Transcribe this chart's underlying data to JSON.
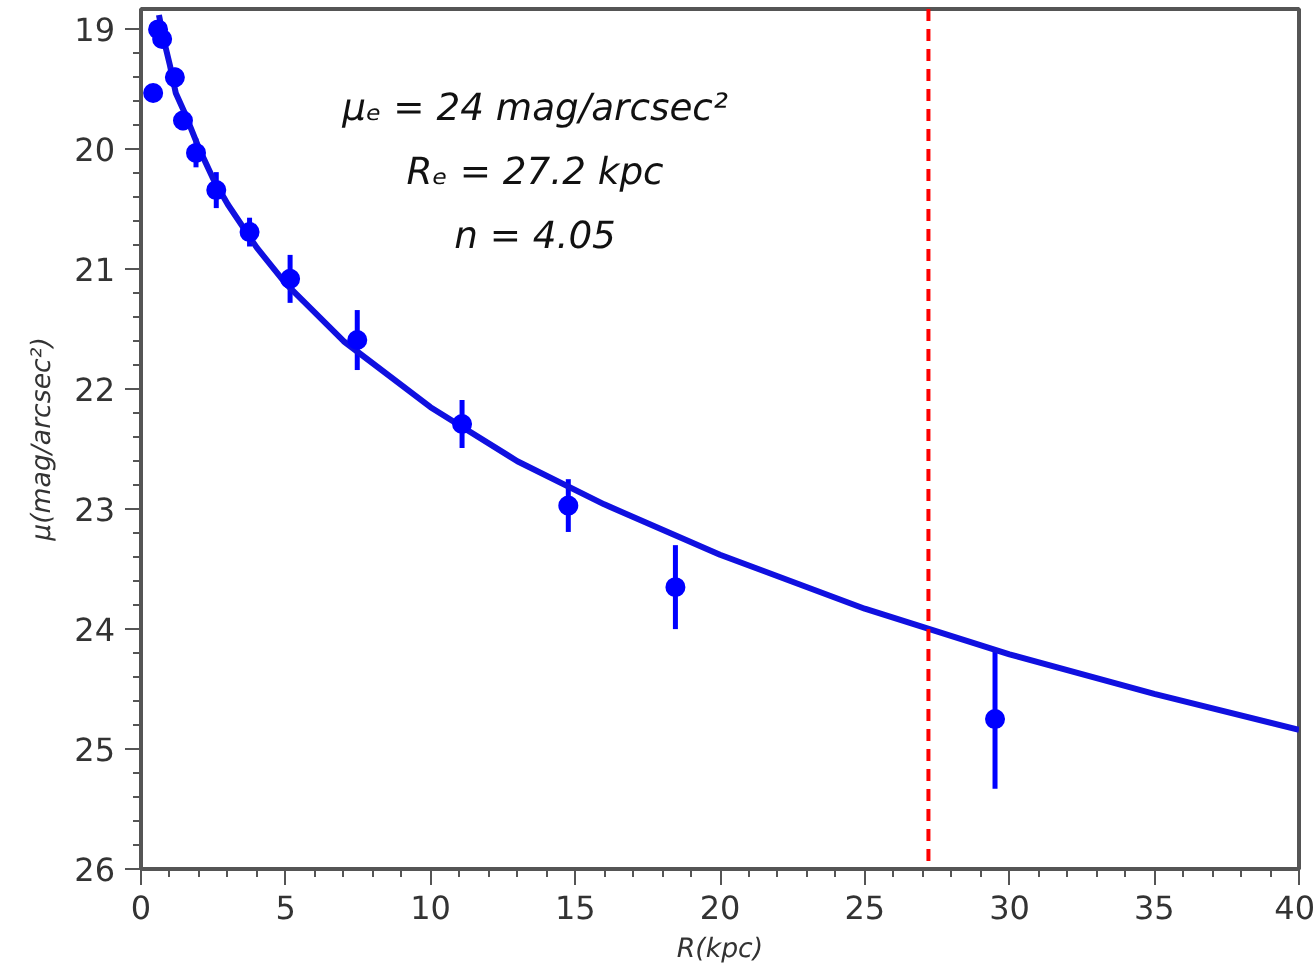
{
  "chart_data": {
    "type": "scatter",
    "xlabel": "R(kpc)",
    "ylabel": "μ(mag/arcsec²)",
    "annotations": [
      "μₑ = 24 mag/arcsec²",
      "Rₑ = 27.2 kpc",
      "n = 4.05"
    ],
    "series": [
      {
        "color": "#0000ff",
        "marker": "circle",
        "x": [
          0.42,
          0.59,
          0.73,
          1.17,
          1.45,
          1.9,
          2.6,
          3.75,
          5.15,
          7.47,
          11.09,
          14.76,
          18.46,
          29.5
        ],
        "values": [
          19.53,
          19.0,
          19.08,
          19.4,
          19.76,
          20.03,
          20.34,
          20.69,
          21.08,
          21.59,
          22.29,
          22.97,
          23.65,
          24.75
        ],
        "errors": [
          null,
          0.05,
          0.05,
          0.08,
          0.08,
          0.12,
          0.15,
          0.12,
          0.2,
          0.25,
          0.2,
          0.22,
          0.35,
          0.58
        ]
      },
      {
        "type": "line",
        "color": "#1010e0",
        "marker": "none",
        "line_style": "solid",
        "x": [
          0.62,
          0.8,
          1,
          1.2,
          1.5,
          2,
          2.5,
          3,
          4,
          5,
          7,
          10,
          13,
          16,
          20,
          25,
          30,
          35,
          40
        ],
        "values": [
          18.88,
          19.1,
          19.3,
          19.53,
          19.69,
          19.99,
          20.25,
          20.46,
          20.82,
          21.12,
          21.6,
          22.15,
          22.6,
          22.96,
          23.38,
          23.83,
          24.21,
          24.54,
          24.84
        ]
      }
    ],
    "ref_lines": [
      {
        "axis": "x",
        "value": 27.2,
        "color": "#ff0000",
        "line_style": "dashed"
      }
    ],
    "xlim": [
      0,
      40
    ],
    "xticks": [
      0,
      5,
      10,
      15,
      20,
      25,
      30,
      35,
      40
    ],
    "ylim": [
      26,
      18.83
    ],
    "yticks": [
      19,
      20,
      21,
      22,
      23,
      24,
      25,
      26
    ],
    "grid": false
  }
}
